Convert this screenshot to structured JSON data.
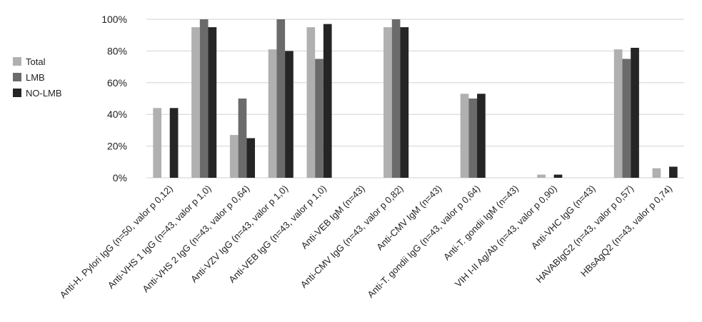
{
  "chart_data": {
    "type": "bar",
    "title": "",
    "xlabel": "",
    "ylabel": "",
    "ylim": [
      0,
      100
    ],
    "yticks": [
      "0%",
      "20%",
      "40%",
      "60%",
      "80%",
      "100%"
    ],
    "grid": true,
    "legend_position": "left",
    "categories": [
      "Anti-H. Pylori IgG (n=50, valor p 0,12)",
      "Anti-VHS 1 IgG (n=43, valor p 1,0)",
      "Anti-VHS 2 IgG (n=43, valor p 0,64)",
      "Anti-VZV IgG (n=43, valor p 1,0)",
      "Anti-VEB IgG (n=43, valor p 1,0)",
      "Anti-VEB IgM (n=43)",
      "Anti-CMV IgG (n=43, valor p 0,82)",
      "Anti-CMV IgM (n=43)",
      "Anti-T. gondii IgG (n=43, valor p 0,64)",
      "Anti-T. gondii IgM (n=43)",
      "VIH I-II Ag/Ab (n=43, valor p 0,90)",
      "Anti-VHC IgG (n=43)",
      "HAVABIgG2 (n=43, valor p 0,57)",
      "HBsAgQ2 (n=43, valor p 0,74)"
    ],
    "series": [
      {
        "name": "Total",
        "color": "#b0b0b0",
        "values": [
          44,
          95,
          27,
          81,
          95,
          0,
          95,
          0,
          53,
          0,
          2,
          0,
          81,
          6
        ]
      },
      {
        "name": "LMB",
        "color": "#6b6b6b",
        "values": [
          0,
          100,
          50,
          100,
          75,
          0,
          100,
          0,
          50,
          0,
          0,
          0,
          75,
          0
        ]
      },
      {
        "name": "NO-LMB",
        "color": "#252525",
        "values": [
          44,
          95,
          25,
          80,
          97,
          0,
          95,
          0,
          53,
          0,
          2,
          0,
          82,
          7
        ]
      }
    ]
  },
  "legend": {
    "items": [
      {
        "label": "Total",
        "color": "#b0b0b0"
      },
      {
        "label": "LMB",
        "color": "#6b6b6b"
      },
      {
        "label": "NO-LMB",
        "color": "#252525"
      }
    ]
  },
  "style": {
    "gridline_color": "#e0e0e0",
    "text_color": "#222222"
  }
}
